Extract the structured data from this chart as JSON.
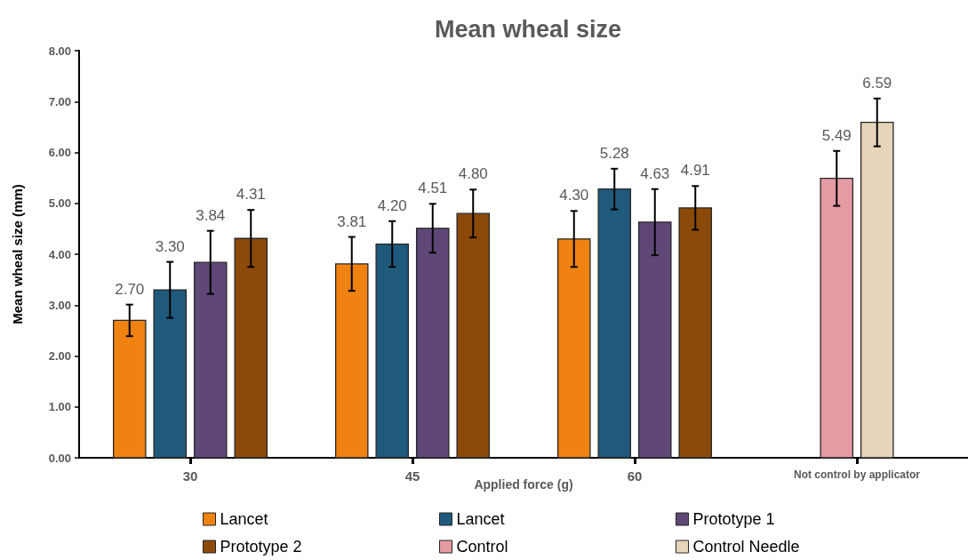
{
  "chart_data": {
    "type": "bar",
    "title": "Mean wheal size",
    "xlabel": "Applied force (g)",
    "ylabel": "Mean wheal size (mm)",
    "categories": [
      "30",
      "45",
      "60",
      "Not control by applicator"
    ],
    "series": [
      {
        "name": "Lancet",
        "color": "#ef8210",
        "values": [
          2.7,
          3.81,
          4.3,
          null
        ],
        "errors": [
          0.31,
          0.53,
          0.55,
          null
        ],
        "value_labels": [
          "2.70",
          "3.81",
          "4.30",
          null
        ]
      },
      {
        "name": "Lancet",
        "color": "#1f5a7c",
        "values": [
          3.3,
          4.2,
          5.28,
          null
        ],
        "errors": [
          0.55,
          0.45,
          0.4,
          null
        ],
        "value_labels": [
          "3.30",
          "4.20",
          "5.28",
          null
        ]
      },
      {
        "name": "Prototype 1",
        "color": "#5f4778",
        "values": [
          3.84,
          4.51,
          4.63,
          null
        ],
        "errors": [
          0.62,
          0.48,
          0.65,
          null
        ],
        "value_labels": [
          "3.84",
          "4.51",
          "4.63",
          null
        ]
      },
      {
        "name": "Prototype 2",
        "color": "#8b4a09",
        "values": [
          4.31,
          4.8,
          4.91,
          null
        ],
        "errors": [
          0.56,
          0.47,
          0.43,
          null
        ],
        "value_labels": [
          "4.31",
          "4.80",
          "4.91",
          null
        ]
      },
      {
        "name": "Control",
        "color": "#e59aa4",
        "values": [
          null,
          null,
          null,
          5.49
        ],
        "errors": [
          null,
          null,
          null,
          0.54
        ],
        "value_labels": [
          null,
          null,
          null,
          "5.49"
        ]
      },
      {
        "name": "Control Needle",
        "color": "#e6d5ba",
        "values": [
          null,
          null,
          null,
          6.59
        ],
        "errors": [
          null,
          null,
          null,
          0.47
        ],
        "value_labels": [
          null,
          null,
          null,
          "6.59"
        ]
      }
    ],
    "ylim": [
      0,
      8
    ],
    "yticks": [
      {
        "value": 0,
        "label": "0.00"
      },
      {
        "value": 1,
        "label": "1.00"
      },
      {
        "value": 2,
        "label": "2.00"
      },
      {
        "value": 3,
        "label": "3.00"
      },
      {
        "value": 4,
        "label": "4.00"
      },
      {
        "value": 5,
        "label": "5.00"
      },
      {
        "value": 6,
        "label": "6.00"
      },
      {
        "value": 7,
        "label": "7.00"
      },
      {
        "value": 8,
        "label": "8.00"
      }
    ],
    "grid": false,
    "legend": "bottom"
  }
}
